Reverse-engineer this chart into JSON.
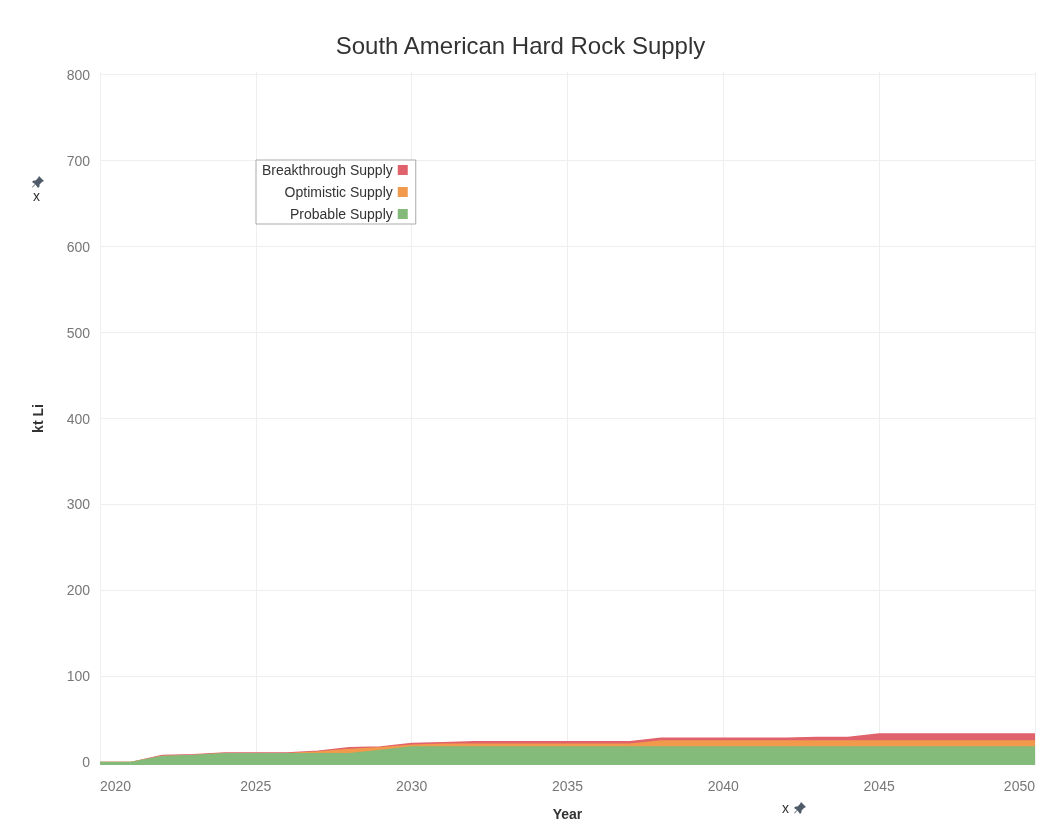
{
  "chart_data": {
    "type": "area",
    "title": "South American Hard Rock Supply",
    "xlabel": "Year",
    "ylabel": "kt Li",
    "stacked": true,
    "x": [
      2020,
      2021,
      2022,
      2023,
      2024,
      2025,
      2026,
      2027,
      2028,
      2029,
      2030,
      2031,
      2032,
      2033,
      2034,
      2035,
      2036,
      2037,
      2038,
      2039,
      2040,
      2041,
      2042,
      2043,
      2044,
      2045,
      2046,
      2047,
      2048,
      2049,
      2050
    ],
    "series": [
      {
        "name": "Probable Supply",
        "color": "#84ba7a",
        "values": [
          0,
          0,
          7,
          8,
          10,
          10,
          10,
          10,
          10,
          14,
          18,
          18,
          18,
          18,
          18,
          18,
          18,
          18,
          18,
          18,
          18,
          18,
          18,
          18,
          18,
          18,
          18,
          18,
          18,
          18,
          18
        ]
      },
      {
        "name": "Optimistic Supply",
        "color": "#f19a4c",
        "values": [
          0,
          0,
          0,
          0,
          0,
          0,
          0,
          2,
          5,
          3,
          2,
          3,
          3,
          3,
          3,
          3,
          3,
          3,
          7,
          7,
          7,
          7,
          7,
          7,
          7,
          7,
          7,
          7,
          7,
          7,
          7
        ]
      },
      {
        "name": "Breakthrough Supply",
        "color": "#e0626c",
        "values": [
          0,
          0,
          1,
          1,
          1,
          1,
          1,
          1,
          2,
          1,
          2,
          2,
          3,
          3,
          3,
          3,
          3,
          3,
          3,
          3,
          3,
          3,
          3,
          4,
          4,
          8,
          8,
          8,
          8,
          8,
          8
        ]
      }
    ],
    "xlim": [
      2020,
      2050
    ],
    "xticks": [
      2020,
      2025,
      2030,
      2035,
      2040,
      2045,
      2050
    ],
    "ylim": [
      -3,
      803
    ],
    "yticks": [
      0,
      100,
      200,
      300,
      400,
      500,
      600,
      700,
      800
    ],
    "grid": true,
    "legend": "top left",
    "marker": "none",
    "annotations": [
      "x",
      "x"
    ]
  }
}
